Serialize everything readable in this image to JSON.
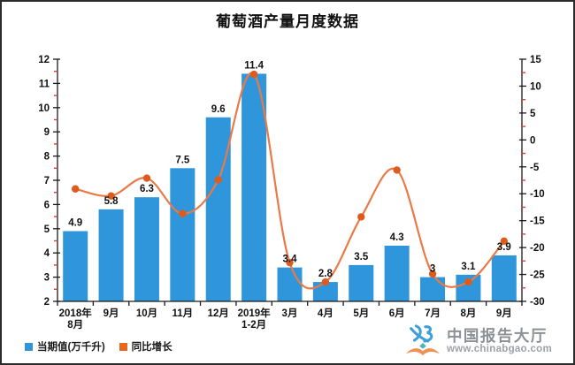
{
  "frame": {
    "border_color": "#2b2b2b",
    "background": "#ffffff"
  },
  "legend": [
    {
      "label": "当期值(万千升)",
      "color": "#2f96dc"
    },
    {
      "label": "同比增长",
      "color": "#e8671f"
    }
  ],
  "watermark": {
    "brand": "中国报告大厅",
    "url": "www.chinabgao.com",
    "logo_icon": "chinabgao-logo",
    "logo_blue": "#3e9ed6",
    "logo_orange": "#ef9055",
    "logo_teal": "#49b8b0",
    "text_color": "#8c9196"
  },
  "chart_data": {
    "type": "combo",
    "title": "葡萄酒产量月度数据",
    "categories": [
      "2018年\n8月",
      "9月",
      "10月",
      "11月",
      "12月",
      "2019年\n1-2月",
      "3月",
      "4月",
      "5月",
      "6月",
      "7月",
      "8月",
      "9月"
    ],
    "series": [
      {
        "name": "当期值(万千升)",
        "type": "bar",
        "axis": "left",
        "color": "#2f96dc",
        "values": [
          4.9,
          5.8,
          6.3,
          7.5,
          9.6,
          11.4,
          3.4,
          2.8,
          3.5,
          4.3,
          3,
          3.1,
          3.9
        ],
        "labels": [
          "4.9",
          "5.8",
          "6.3",
          "7.5",
          "9.6",
          "11.4",
          "3.4",
          "2.8",
          "3.5",
          "4.3",
          "3",
          "3.1",
          "3.9"
        ]
      },
      {
        "name": "同比增长",
        "type": "line",
        "axis": "right",
        "color": "#ea7a45",
        "marker_color": "#dd5b1f",
        "smooth": true,
        "values": [
          -9.1,
          -10.4,
          -7.1,
          -13.7,
          -7.4,
          12.2,
          -22.8,
          -26.4,
          -14.3,
          -5.6,
          -24.9,
          -26.4,
          -18.8
        ]
      }
    ],
    "axes": {
      "left": {
        "min": 2,
        "max": 12,
        "step": 1,
        "minor_step": 0.5,
        "ticks": [
          "2",
          "3",
          "4",
          "5",
          "6",
          "7",
          "8",
          "9",
          "10",
          "11",
          "12"
        ]
      },
      "right": {
        "min": -30,
        "max": 15,
        "step": 5,
        "minor_step": 2.5,
        "ticks": [
          "-30",
          "-25",
          "-20",
          "-15",
          "-10",
          "-5",
          "0",
          "5",
          "10",
          "15"
        ]
      }
    },
    "grid": false,
    "legend_position": "bottom-left",
    "style": {
      "axis_color": "#1a1a1a",
      "minor_tick_color": "#e03c2f",
      "label_color": "#111111"
    }
  }
}
